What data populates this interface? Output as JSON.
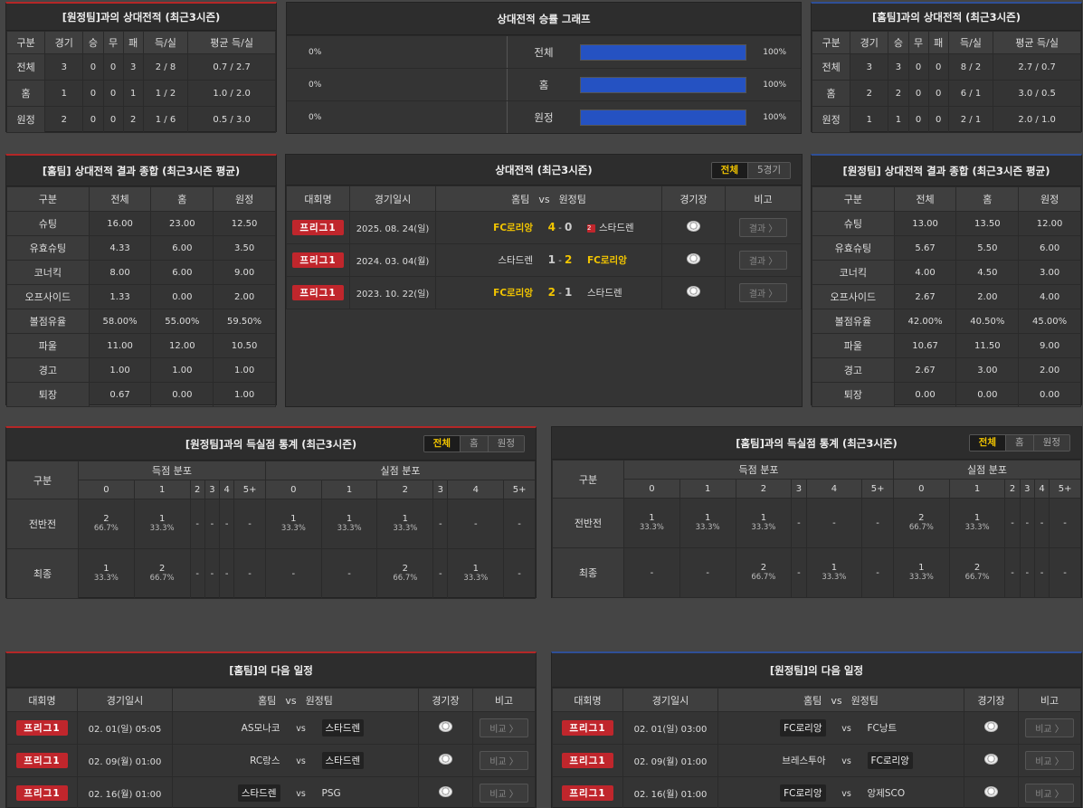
{
  "h2h_away": {
    "title": "[원정팀]과의 상대전적 (최근3시즌)",
    "headers": [
      "구분",
      "경기",
      "승",
      "무",
      "패",
      "득/실",
      "평균 득/실"
    ],
    "rows": [
      [
        "전체",
        "3",
        "0",
        "0",
        "3",
        "2 / 8",
        "0.7 / 2.7"
      ],
      [
        "홈",
        "1",
        "0",
        "0",
        "1",
        "1 / 2",
        "1.0 / 2.0"
      ],
      [
        "원정",
        "2",
        "0",
        "0",
        "2",
        "1 / 6",
        "0.5 / 3.0"
      ]
    ]
  },
  "h2h_home": {
    "title": "[홈팀]과의 상대전적 (최근3시즌)",
    "headers": [
      "구분",
      "경기",
      "승",
      "무",
      "패",
      "득/실",
      "평균 득/실"
    ],
    "rows": [
      [
        "전체",
        "3",
        "3",
        "0",
        "0",
        "8 / 2",
        "2.7 / 0.7"
      ],
      [
        "홈",
        "2",
        "2",
        "0",
        "0",
        "6 / 1",
        "3.0 / 0.5"
      ],
      [
        "원정",
        "1",
        "1",
        "0",
        "0",
        "2 / 1",
        "2.0 / 1.0"
      ]
    ]
  },
  "graph": {
    "title": "상대전적 승률 그래프",
    "rows": [
      {
        "left": "0%",
        "label": "전체",
        "right": "100%",
        "fill": 1.0
      },
      {
        "left": "0%",
        "label": "홈",
        "right": "100%",
        "fill": 1.0
      },
      {
        "left": "0%",
        "label": "원정",
        "right": "100%",
        "fill": 1.0
      }
    ]
  },
  "summary_home": {
    "title": "[홈팀] 상대전적 결과 종합 (최근3시즌 평균)",
    "headers": [
      "구분",
      "전체",
      "홈",
      "원정"
    ],
    "rows": [
      [
        "슈팅",
        "16.00",
        "23.00",
        "12.50"
      ],
      [
        "유효슈팅",
        "4.33",
        "6.00",
        "3.50"
      ],
      [
        "코너킥",
        "8.00",
        "6.00",
        "9.00"
      ],
      [
        "오프사이드",
        "1.33",
        "0.00",
        "2.00"
      ],
      [
        "볼점유율",
        "58.00%",
        "55.00%",
        "59.50%"
      ],
      [
        "파울",
        "11.00",
        "12.00",
        "10.50"
      ],
      [
        "경고",
        "1.00",
        "1.00",
        "1.00"
      ],
      [
        "퇴장",
        "0.67",
        "0.00",
        "1.00"
      ]
    ]
  },
  "summary_away": {
    "title": "[원정팀] 상대전적 결과 종합 (최근3시즌 평균)",
    "headers": [
      "구분",
      "전체",
      "홈",
      "원정"
    ],
    "rows": [
      [
        "슈팅",
        "13.00",
        "13.50",
        "12.00"
      ],
      [
        "유효슈팅",
        "5.67",
        "5.50",
        "6.00"
      ],
      [
        "코너킥",
        "4.00",
        "4.50",
        "3.00"
      ],
      [
        "오프사이드",
        "2.67",
        "2.00",
        "4.00"
      ],
      [
        "볼점유율",
        "42.00%",
        "40.50%",
        "45.00%"
      ],
      [
        "파울",
        "10.67",
        "11.50",
        "9.00"
      ],
      [
        "경고",
        "2.67",
        "3.00",
        "2.00"
      ],
      [
        "퇴장",
        "0.00",
        "0.00",
        "0.00"
      ]
    ]
  },
  "matches": {
    "title": "상대전적 (최근3시즌)",
    "tabs": [
      "전체",
      "5경기"
    ],
    "headers": {
      "league": "대회명",
      "date": "경기일시",
      "home": "홈팀",
      "vs": "vs",
      "away": "원정팀",
      "stadium": "경기장",
      "note": "비고"
    },
    "rows": [
      {
        "league": "프리그1",
        "date": "2025. 08. 24(일)",
        "home": "FC로리앙",
        "hs": "4",
        "as": "0",
        "away": "스타드렌",
        "btn": "결과 〉",
        "red": "2"
      },
      {
        "league": "프리그1",
        "date": "2024. 03. 04(월)",
        "home": "스타드렌",
        "hs": "1",
        "as": "2",
        "away": "FC로리앙",
        "btn": "결과 〉"
      },
      {
        "league": "프리그1",
        "date": "2023. 10. 22(일)",
        "home": "FC로리앙",
        "hs": "2",
        "as": "1",
        "away": "스타드렌",
        "btn": "결과 〉"
      }
    ]
  },
  "goals_away": {
    "title": "[원정팀]과의 득실점 통계 (최근3시즌)",
    "tabs": [
      "전체",
      "홈",
      "원정"
    ],
    "col0": "구분",
    "g_for": "득점 분포",
    "g_against": "실점 분포",
    "nums": [
      "0",
      "1",
      "2",
      "3",
      "4",
      "5+"
    ],
    "rows": [
      {
        "label": "전반전",
        "cells": [
          [
            "2",
            "66.7%"
          ],
          [
            "1",
            "33.3%"
          ],
          [
            "-",
            ""
          ],
          [
            "-",
            ""
          ],
          [
            "-",
            ""
          ],
          [
            "-",
            ""
          ],
          [
            "1",
            "33.3%"
          ],
          [
            "1",
            "33.3%"
          ],
          [
            "1",
            "33.3%"
          ],
          [
            "-",
            ""
          ],
          [
            "-",
            ""
          ],
          [
            "-",
            ""
          ]
        ]
      },
      {
        "label": "최종",
        "cells": [
          [
            "1",
            "33.3%"
          ],
          [
            "2",
            "66.7%"
          ],
          [
            "-",
            ""
          ],
          [
            "-",
            ""
          ],
          [
            "-",
            ""
          ],
          [
            "-",
            ""
          ],
          [
            "-",
            ""
          ],
          [
            "-",
            ""
          ],
          [
            "2",
            "66.7%"
          ],
          [
            "-",
            ""
          ],
          [
            "1",
            "33.3%"
          ],
          [
            "-",
            ""
          ]
        ]
      }
    ]
  },
  "goals_home": {
    "title": "[홈팀]과의 득실점 통계 (최근3시즌)",
    "tabs": [
      "전체",
      "홈",
      "원정"
    ],
    "col0": "구분",
    "g_for": "득점 분포",
    "g_against": "실점 분포",
    "nums": [
      "0",
      "1",
      "2",
      "3",
      "4",
      "5+"
    ],
    "rows": [
      {
        "label": "전반전",
        "cells": [
          [
            "1",
            "33.3%"
          ],
          [
            "1",
            "33.3%"
          ],
          [
            "1",
            "33.3%"
          ],
          [
            "-",
            ""
          ],
          [
            "-",
            ""
          ],
          [
            "-",
            ""
          ],
          [
            "2",
            "66.7%"
          ],
          [
            "1",
            "33.3%"
          ],
          [
            "-",
            ""
          ],
          [
            "-",
            ""
          ],
          [
            "-",
            ""
          ],
          [
            "-",
            ""
          ]
        ]
      },
      {
        "label": "최종",
        "cells": [
          [
            "-",
            ""
          ],
          [
            "-",
            ""
          ],
          [
            "2",
            "66.7%"
          ],
          [
            "-",
            ""
          ],
          [
            "1",
            "33.3%"
          ],
          [
            "-",
            ""
          ],
          [
            "1",
            "33.3%"
          ],
          [
            "2",
            "66.7%"
          ],
          [
            "-",
            ""
          ],
          [
            "-",
            ""
          ],
          [
            "-",
            ""
          ],
          [
            "-",
            ""
          ]
        ]
      }
    ]
  },
  "next_home": {
    "title": "[홈팀]의 다음 일정",
    "headers": {
      "league": "대회명",
      "date": "경기일시",
      "home": "홈팀",
      "vs": "vs",
      "away": "원정팀",
      "stadium": "경기장",
      "note": "비고"
    },
    "rows": [
      {
        "league": "프리그1",
        "date": "02. 01(일) 05:05",
        "home": "AS모나코",
        "away": "스타드렌",
        "box": "away",
        "btn": "비교 〉"
      },
      {
        "league": "프리그1",
        "date": "02. 09(월) 01:00",
        "home": "RC랑스",
        "away": "스타드렌",
        "box": "away",
        "btn": "비교 〉"
      },
      {
        "league": "프리그1",
        "date": "02. 16(월) 01:00",
        "home": "스타드렌",
        "away": "PSG",
        "box": "home",
        "btn": "비교 〉"
      }
    ]
  },
  "next_away": {
    "title": "[원정팀]의 다음 일정",
    "headers": {
      "league": "대회명",
      "date": "경기일시",
      "home": "홈팀",
      "vs": "vs",
      "away": "원정팀",
      "stadium": "경기장",
      "note": "비고"
    },
    "rows": [
      {
        "league": "프리그1",
        "date": "02. 01(일) 03:00",
        "home": "FC로리앙",
        "away": "FC낭트",
        "box": "home",
        "btn": "비교 〉"
      },
      {
        "league": "프리그1",
        "date": "02. 09(월) 01:00",
        "home": "브레스투아",
        "away": "FC로리앙",
        "box": "away",
        "btn": "비교 〉"
      },
      {
        "league": "프리그1",
        "date": "02. 16(월) 01:00",
        "home": "FC로리앙",
        "away": "앙제SCO",
        "box": "home",
        "btn": "비교 〉"
      }
    ]
  },
  "colors": {
    "red_accent": "#b42727",
    "blue_accent": "#2f4f97",
    "gold": "#f2c500",
    "bar": "#2552c2"
  }
}
